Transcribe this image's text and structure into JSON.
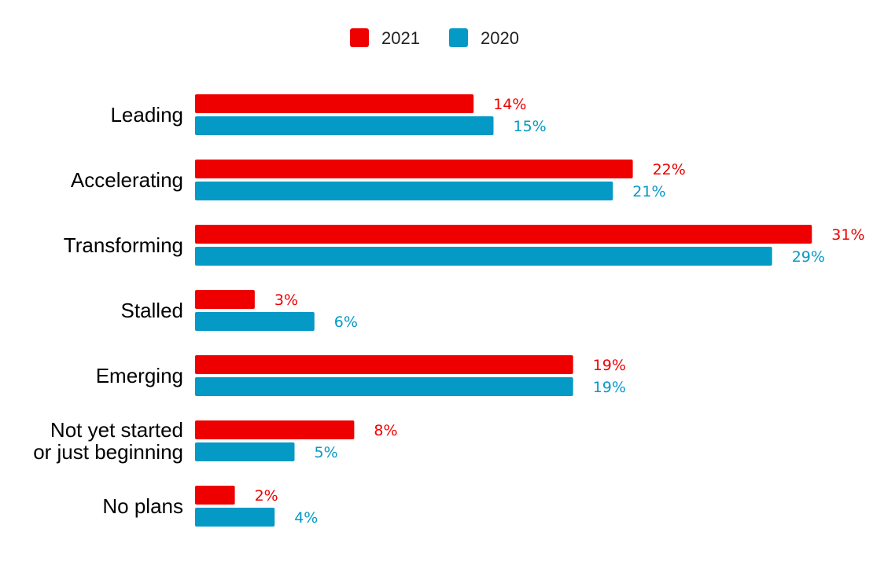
{
  "chart_data": {
    "type": "bar",
    "orientation": "horizontal",
    "categories": [
      [
        "Leading"
      ],
      [
        "Accelerating"
      ],
      [
        "Transforming"
      ],
      [
        "Stalled"
      ],
      [
        "Emerging"
      ],
      [
        "Not yet started",
        "or just beginning"
      ],
      [
        "No plans"
      ]
    ],
    "series": [
      {
        "name": "2021",
        "color": "#ee0000",
        "values": [
          14,
          22,
          31,
          3,
          19,
          8,
          2
        ],
        "labels": [
          "14%",
          "22%",
          "31%",
          "3%",
          "19%",
          "8%",
          "2%"
        ]
      },
      {
        "name": "2020",
        "color": "#0599c6",
        "values": [
          15,
          21,
          29,
          6,
          19,
          5,
          4
        ],
        "labels": [
          "15%",
          "21%",
          "29%",
          "6%",
          "19%",
          "5%",
          "4%"
        ]
      }
    ],
    "legend_position": "top-center",
    "grid": false,
    "xlim": [
      0,
      31
    ]
  }
}
